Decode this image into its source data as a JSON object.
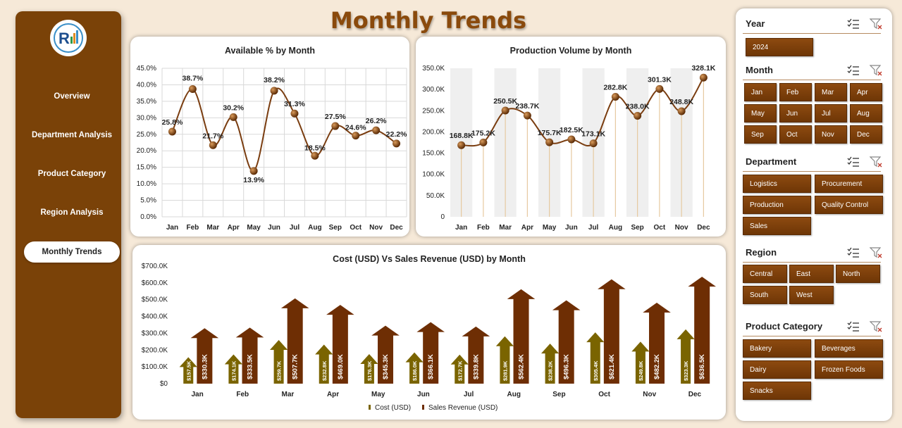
{
  "app": {
    "title": "Monthly Trends"
  },
  "sidebar": {
    "logo_icon": "company-logo-icon",
    "items": [
      {
        "label": "Overview",
        "active": false
      },
      {
        "label": "Department Analysis",
        "active": false
      },
      {
        "label": "Product Category",
        "active": false
      },
      {
        "label": "Region Analysis",
        "active": false
      },
      {
        "label": "Monthly Trends",
        "active": true
      }
    ]
  },
  "colors": {
    "brand": "#7a4208",
    "line": "#7a3d10",
    "cost": "#7a6400",
    "revenue": "#6e2e04"
  },
  "chart_data": [
    {
      "type": "line",
      "title": "Available % by Month",
      "categories": [
        "Jan",
        "Feb",
        "Mar",
        "Apr",
        "May",
        "Jun",
        "Jul",
        "Aug",
        "Sep",
        "Oct",
        "Nov",
        "Dec"
      ],
      "values": [
        25.8,
        38.7,
        21.7,
        30.2,
        13.9,
        38.2,
        31.3,
        18.5,
        27.5,
        24.6,
        26.2,
        22.2
      ],
      "labels": [
        "25.8%",
        "38.7%",
        "21.7%",
        "30.2%",
        "13.9%",
        "38.2%",
        "31.3%",
        "18.5%",
        "27.5%",
        "24.6%",
        "26.2%",
        "22.2%"
      ],
      "yticks": [
        "0.0%",
        "5.0%",
        "10.0%",
        "15.0%",
        "20.0%",
        "25.0%",
        "30.0%",
        "35.0%",
        "40.0%",
        "45.0%"
      ],
      "ylim": [
        0,
        45
      ]
    },
    {
      "type": "line",
      "title": "Production Volume by Month",
      "categories": [
        "Jan",
        "Feb",
        "Mar",
        "Apr",
        "May",
        "Jun",
        "Jul",
        "Aug",
        "Sep",
        "Oct",
        "Nov",
        "Dec"
      ],
      "values": [
        168.8,
        175.2,
        250.5,
        238.7,
        175.7,
        182.5,
        173.1,
        282.8,
        238.0,
        301.3,
        248.8,
        328.1
      ],
      "labels": [
        "168.8K",
        "175.2K",
        "250.5K",
        "238.7K",
        "175.7K",
        "182.5K",
        "173.1K",
        "282.8K",
        "238.0K",
        "301.3K",
        "248.8K",
        "328.1K"
      ],
      "yticks": [
        "0",
        "50.0K",
        "100.0K",
        "150.0K",
        "200.0K",
        "250.0K",
        "300.0K",
        "350.0K"
      ],
      "ylim": [
        0,
        350
      ]
    },
    {
      "type": "bar",
      "title": "Cost (USD) Vs Sales Revenue (USD) by Month",
      "categories": [
        "Jan",
        "Feb",
        "Mar",
        "Apr",
        "May",
        "Jun",
        "Jul",
        "Aug",
        "Sep",
        "Oct",
        "Nov",
        "Dec"
      ],
      "series": [
        {
          "name": "Cost (USD)",
          "values": [
            157.5,
            174.1,
            259.7,
            232.8,
            176.3,
            186.0,
            172.7,
            281.9,
            238.2,
            305.4,
            249.8,
            323.3
          ],
          "labels": [
            "$157.5K",
            "$174.1K",
            "$259.7K",
            "$232.8K",
            "$176.3K",
            "$186.0K",
            "$172.7K",
            "$281.9K",
            "$238.2K",
            "$305.4K",
            "$249.8K",
            "$323.3K"
          ]
        },
        {
          "name": "Sales Revenue (USD)",
          "values": [
            330.3,
            333.5,
            507.7,
            469.0,
            345.3,
            366.1,
            339.8,
            562.4,
            496.3,
            621.4,
            482.2,
            636.5
          ],
          "labels": [
            "$330.3K",
            "$333.5K",
            "$507.7K",
            "$469.0K",
            "$345.3K",
            "$366.1K",
            "$339.8K",
            "$562.4K",
            "$496.3K",
            "$621.4K",
            "$482.2K",
            "$636.5K"
          ]
        }
      ],
      "yticks": [
        "$0",
        "$100.0K",
        "$200.0K",
        "$300.0K",
        "$400.0K",
        "$500.0K",
        "$600.0K",
        "$700.0K"
      ],
      "ylim": [
        0,
        700
      ]
    }
  ],
  "slicers": [
    {
      "key": "year",
      "title": "Year",
      "items": [
        "2024"
      ]
    },
    {
      "key": "month",
      "title": "Month",
      "items": [
        "Jan",
        "Feb",
        "Mar",
        "Apr",
        "May",
        "Jun",
        "Jul",
        "Aug",
        "Sep",
        "Oct",
        "Nov",
        "Dec"
      ]
    },
    {
      "key": "department",
      "title": "Department",
      "items": [
        "Logistics",
        "Procurement",
        "Production",
        "Quality Control",
        "Sales"
      ]
    },
    {
      "key": "region",
      "title": "Region",
      "items": [
        "Central",
        "East",
        "North",
        "South",
        "West"
      ]
    },
    {
      "key": "product-category",
      "title": "Product Category",
      "items": [
        "Bakery",
        "Beverages",
        "Dairy",
        "Frozen Foods",
        "Snacks"
      ]
    }
  ]
}
